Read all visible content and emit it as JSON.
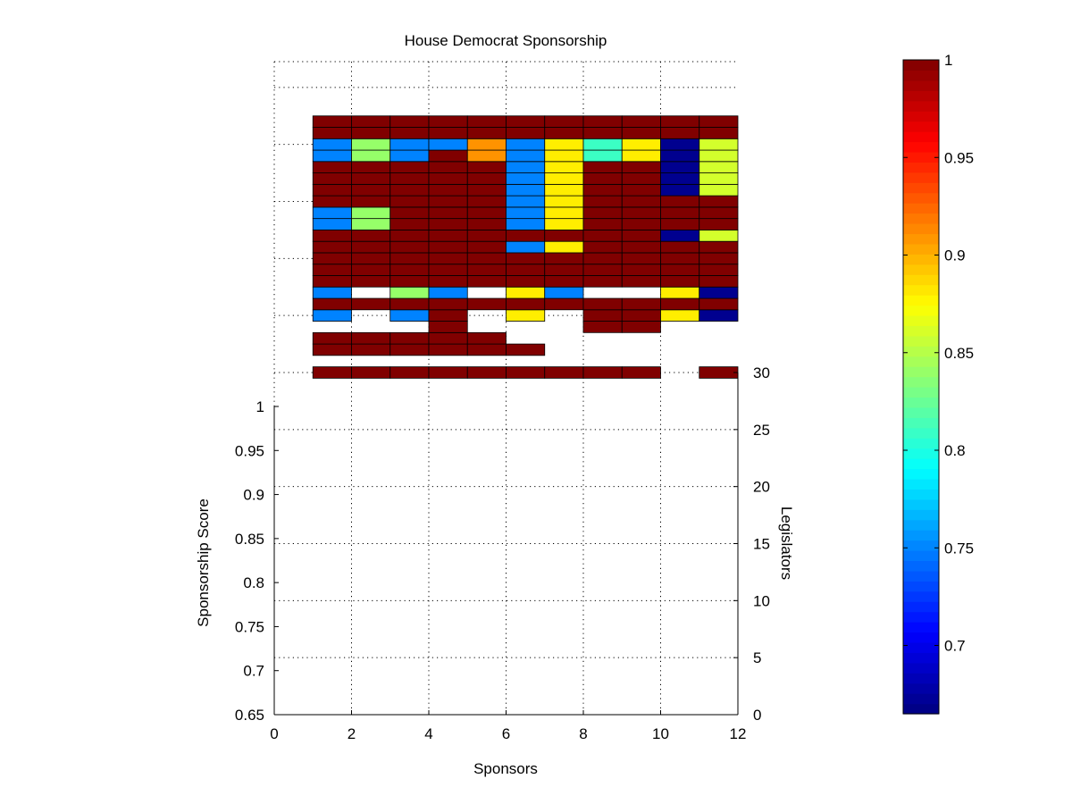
{
  "chart_data": {
    "type": "heatmap",
    "title": "House Democrat Sponsorship",
    "xlabel": "Sponsors",
    "ylabel": "Sponsorship Score",
    "y2label": "Legislators",
    "xlim": [
      0,
      12
    ],
    "ylim": [
      0.65,
      1
    ],
    "y2lim": [
      0,
      30
    ],
    "zlim": [
      0.665,
      1
    ],
    "x_ticks": [
      "0",
      "2",
      "4",
      "6",
      "8",
      "10",
      "12"
    ],
    "y_ticks": [
      "0.65",
      "0.7",
      "0.75",
      "0.8",
      "0.85",
      "0.9",
      "0.95",
      "1"
    ],
    "y2_ticks": [
      "0",
      "5",
      "10",
      "15",
      "20",
      "25",
      "30"
    ],
    "colorbar_ticks": [
      "0.7",
      "0.75",
      "0.8",
      "0.85",
      "0.9",
      "0.95",
      "1"
    ],
    "grid": true,
    "colormap": "jet",
    "sponsors": [
      1,
      2,
      3,
      4,
      5,
      6,
      7,
      8,
      9,
      10,
      11,
      12
    ],
    "legislator_levels": [
      29.5,
      30.5,
      31.5,
      32.5,
      33.5,
      34.5,
      35.5,
      36.5,
      37.5,
      38.5,
      39.5,
      40.5,
      41.5,
      42.5,
      43.5,
      44.5,
      45.5,
      46.5,
      47.5,
      48.5,
      49.5,
      50.5,
      51.5,
      52.5,
      53.5,
      54.5,
      55.5
    ],
    "surface_values": [
      [
        1,
        1,
        1,
        1,
        1,
        1,
        1,
        1,
        1,
        null,
        1,
        1
      ],
      [
        null,
        null,
        null,
        null,
        null,
        null,
        null,
        null,
        null,
        null,
        null,
        null
      ],
      [
        1,
        1,
        1,
        1,
        1,
        1,
        null,
        null,
        null,
        null,
        null,
        null
      ],
      [
        1,
        1,
        1,
        1,
        1,
        null,
        null,
        null,
        null,
        null,
        null,
        null
      ],
      [
        null,
        null,
        null,
        1,
        null,
        null,
        null,
        1,
        1,
        null,
        null,
        null
      ],
      [
        0.75,
        null,
        0.75,
        1,
        null,
        0.88,
        null,
        1,
        1,
        0.88,
        0.67,
        null
      ],
      [
        1,
        1,
        1,
        1,
        1,
        1,
        1,
        1,
        1,
        1,
        1,
        null
      ],
      [
        0.75,
        null,
        0.84,
        0.75,
        null,
        0.88,
        0.75,
        null,
        null,
        0.88,
        0.67,
        null
      ],
      [
        1,
        1,
        1,
        1,
        1,
        1,
        1,
        1,
        1,
        1,
        1,
        1
      ],
      [
        1,
        1,
        1,
        1,
        1,
        1,
        1,
        1,
        1,
        1,
        1,
        1
      ],
      [
        1,
        1,
        1,
        1,
        1,
        1,
        1,
        1,
        1,
        1,
        1,
        1
      ],
      [
        1,
        1,
        1,
        1,
        1,
        0.75,
        0.88,
        1,
        1,
        1,
        1,
        1
      ],
      [
        1,
        1,
        1,
        1,
        1,
        1,
        1,
        1,
        1,
        0.67,
        0.86,
        0.86
      ],
      [
        0.75,
        0.84,
        1,
        1,
        1,
        0.75,
        0.88,
        1,
        1,
        1,
        1,
        1
      ],
      [
        0.75,
        0.84,
        1,
        1,
        1,
        0.75,
        0.88,
        1,
        1,
        1,
        1,
        1
      ],
      [
        1,
        1,
        1,
        1,
        1,
        0.75,
        0.88,
        1,
        1,
        1,
        1,
        1
      ],
      [
        1,
        1,
        1,
        1,
        1,
        0.75,
        0.88,
        1,
        1,
        0.67,
        0.86,
        0.86
      ],
      [
        1,
        1,
        1,
        1,
        1,
        0.75,
        0.88,
        1,
        1,
        0.67,
        0.86,
        0.86
      ],
      [
        1,
        1,
        1,
        1,
        1,
        0.75,
        0.88,
        1,
        1,
        0.67,
        0.86,
        0.86
      ],
      [
        0.75,
        0.84,
        0.75,
        1,
        0.91,
        0.75,
        0.88,
        0.81,
        0.88,
        0.67,
        0.86,
        0.86
      ],
      [
        0.75,
        0.84,
        0.75,
        0.75,
        0.91,
        0.75,
        0.88,
        0.81,
        0.88,
        0.67,
        0.86,
        0.86
      ],
      [
        1,
        1,
        1,
        1,
        1,
        1,
        1,
        1,
        1,
        1,
        1,
        1
      ],
      [
        1,
        1,
        1,
        1,
        1,
        1,
        1,
        1,
        1,
        1,
        1,
        1
      ]
    ],
    "colorbar_range": [
      0.665,
      1
    ]
  }
}
